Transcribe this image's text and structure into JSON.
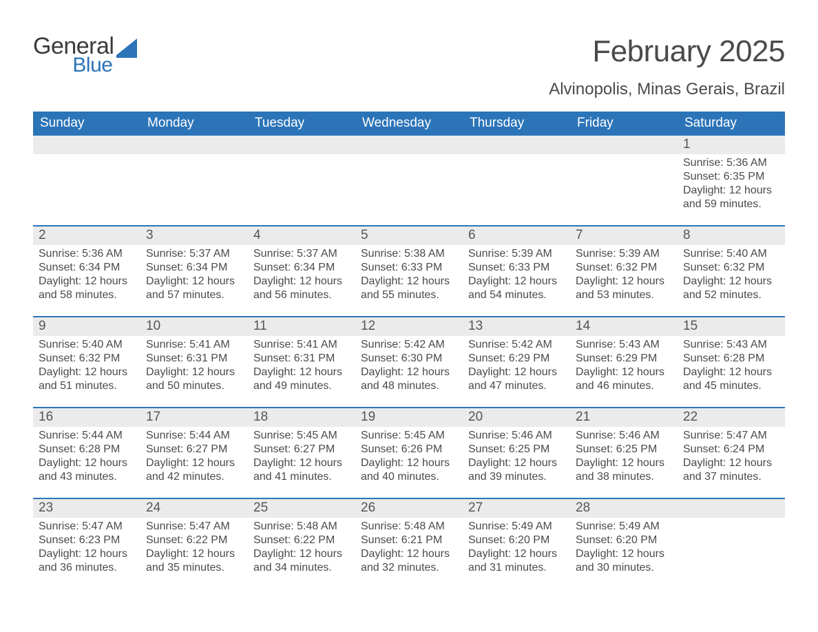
{
  "brand": {
    "part1": "General",
    "part2": "Blue",
    "accent_color": "#2b74b8"
  },
  "title": "February 2025",
  "subtitle": "Alvinopolis, Minas Gerais, Brazil",
  "colors": {
    "header_bg": "#2b74b8",
    "header_text": "#ffffff",
    "strip_bg": "#ebebeb",
    "body_text": "#4a4a4a",
    "row_divider": "#2b74b8",
    "page_bg": "#ffffff"
  },
  "day_names": [
    "Sunday",
    "Monday",
    "Tuesday",
    "Wednesday",
    "Thursday",
    "Friday",
    "Saturday"
  ],
  "weeks": [
    [
      {
        "day": "",
        "sunrise": "",
        "sunset": "",
        "daylight": ""
      },
      {
        "day": "",
        "sunrise": "",
        "sunset": "",
        "daylight": ""
      },
      {
        "day": "",
        "sunrise": "",
        "sunset": "",
        "daylight": ""
      },
      {
        "day": "",
        "sunrise": "",
        "sunset": "",
        "daylight": ""
      },
      {
        "day": "",
        "sunrise": "",
        "sunset": "",
        "daylight": ""
      },
      {
        "day": "",
        "sunrise": "",
        "sunset": "",
        "daylight": ""
      },
      {
        "day": "1",
        "sunrise": "Sunrise: 5:36 AM",
        "sunset": "Sunset: 6:35 PM",
        "daylight": "Daylight: 12 hours and 59 minutes."
      }
    ],
    [
      {
        "day": "2",
        "sunrise": "Sunrise: 5:36 AM",
        "sunset": "Sunset: 6:34 PM",
        "daylight": "Daylight: 12 hours and 58 minutes."
      },
      {
        "day": "3",
        "sunrise": "Sunrise: 5:37 AM",
        "sunset": "Sunset: 6:34 PM",
        "daylight": "Daylight: 12 hours and 57 minutes."
      },
      {
        "day": "4",
        "sunrise": "Sunrise: 5:37 AM",
        "sunset": "Sunset: 6:34 PM",
        "daylight": "Daylight: 12 hours and 56 minutes."
      },
      {
        "day": "5",
        "sunrise": "Sunrise: 5:38 AM",
        "sunset": "Sunset: 6:33 PM",
        "daylight": "Daylight: 12 hours and 55 minutes."
      },
      {
        "day": "6",
        "sunrise": "Sunrise: 5:39 AM",
        "sunset": "Sunset: 6:33 PM",
        "daylight": "Daylight: 12 hours and 54 minutes."
      },
      {
        "day": "7",
        "sunrise": "Sunrise: 5:39 AM",
        "sunset": "Sunset: 6:32 PM",
        "daylight": "Daylight: 12 hours and 53 minutes."
      },
      {
        "day": "8",
        "sunrise": "Sunrise: 5:40 AM",
        "sunset": "Sunset: 6:32 PM",
        "daylight": "Daylight: 12 hours and 52 minutes."
      }
    ],
    [
      {
        "day": "9",
        "sunrise": "Sunrise: 5:40 AM",
        "sunset": "Sunset: 6:32 PM",
        "daylight": "Daylight: 12 hours and 51 minutes."
      },
      {
        "day": "10",
        "sunrise": "Sunrise: 5:41 AM",
        "sunset": "Sunset: 6:31 PM",
        "daylight": "Daylight: 12 hours and 50 minutes."
      },
      {
        "day": "11",
        "sunrise": "Sunrise: 5:41 AM",
        "sunset": "Sunset: 6:31 PM",
        "daylight": "Daylight: 12 hours and 49 minutes."
      },
      {
        "day": "12",
        "sunrise": "Sunrise: 5:42 AM",
        "sunset": "Sunset: 6:30 PM",
        "daylight": "Daylight: 12 hours and 48 minutes."
      },
      {
        "day": "13",
        "sunrise": "Sunrise: 5:42 AM",
        "sunset": "Sunset: 6:29 PM",
        "daylight": "Daylight: 12 hours and 47 minutes."
      },
      {
        "day": "14",
        "sunrise": "Sunrise: 5:43 AM",
        "sunset": "Sunset: 6:29 PM",
        "daylight": "Daylight: 12 hours and 46 minutes."
      },
      {
        "day": "15",
        "sunrise": "Sunrise: 5:43 AM",
        "sunset": "Sunset: 6:28 PM",
        "daylight": "Daylight: 12 hours and 45 minutes."
      }
    ],
    [
      {
        "day": "16",
        "sunrise": "Sunrise: 5:44 AM",
        "sunset": "Sunset: 6:28 PM",
        "daylight": "Daylight: 12 hours and 43 minutes."
      },
      {
        "day": "17",
        "sunrise": "Sunrise: 5:44 AM",
        "sunset": "Sunset: 6:27 PM",
        "daylight": "Daylight: 12 hours and 42 minutes."
      },
      {
        "day": "18",
        "sunrise": "Sunrise: 5:45 AM",
        "sunset": "Sunset: 6:27 PM",
        "daylight": "Daylight: 12 hours and 41 minutes."
      },
      {
        "day": "19",
        "sunrise": "Sunrise: 5:45 AM",
        "sunset": "Sunset: 6:26 PM",
        "daylight": "Daylight: 12 hours and 40 minutes."
      },
      {
        "day": "20",
        "sunrise": "Sunrise: 5:46 AM",
        "sunset": "Sunset: 6:25 PM",
        "daylight": "Daylight: 12 hours and 39 minutes."
      },
      {
        "day": "21",
        "sunrise": "Sunrise: 5:46 AM",
        "sunset": "Sunset: 6:25 PM",
        "daylight": "Daylight: 12 hours and 38 minutes."
      },
      {
        "day": "22",
        "sunrise": "Sunrise: 5:47 AM",
        "sunset": "Sunset: 6:24 PM",
        "daylight": "Daylight: 12 hours and 37 minutes."
      }
    ],
    [
      {
        "day": "23",
        "sunrise": "Sunrise: 5:47 AM",
        "sunset": "Sunset: 6:23 PM",
        "daylight": "Daylight: 12 hours and 36 minutes."
      },
      {
        "day": "24",
        "sunrise": "Sunrise: 5:47 AM",
        "sunset": "Sunset: 6:22 PM",
        "daylight": "Daylight: 12 hours and 35 minutes."
      },
      {
        "day": "25",
        "sunrise": "Sunrise: 5:48 AM",
        "sunset": "Sunset: 6:22 PM",
        "daylight": "Daylight: 12 hours and 34 minutes."
      },
      {
        "day": "26",
        "sunrise": "Sunrise: 5:48 AM",
        "sunset": "Sunset: 6:21 PM",
        "daylight": "Daylight: 12 hours and 32 minutes."
      },
      {
        "day": "27",
        "sunrise": "Sunrise: 5:49 AM",
        "sunset": "Sunset: 6:20 PM",
        "daylight": "Daylight: 12 hours and 31 minutes."
      },
      {
        "day": "28",
        "sunrise": "Sunrise: 5:49 AM",
        "sunset": "Sunset: 6:20 PM",
        "daylight": "Daylight: 12 hours and 30 minutes."
      },
      {
        "day": "",
        "sunrise": "",
        "sunset": "",
        "daylight": ""
      }
    ]
  ]
}
